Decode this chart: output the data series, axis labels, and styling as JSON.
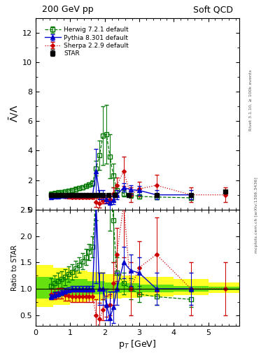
{
  "title_left": "200 GeV pp",
  "title_right": "Soft QCD",
  "ylabel_main": "$\\bar{\\Lambda}/\\Lambda$",
  "ylabel_ratio": "Ratio to STAR",
  "xlabel": "p$_{T}$ [GeV]",
  "right_label1": "Rivet 3.1.10, ≥ 100k events",
  "right_label2": "mcplots.cern.ch [arXiv:1306.3436]",
  "star_x": [
    0.45,
    0.55,
    0.65,
    0.75,
    0.85,
    0.95,
    1.05,
    1.15,
    1.25,
    1.35,
    1.45,
    1.55,
    1.65,
    1.75,
    1.85,
    1.95,
    2.1,
    2.3,
    2.7,
    3.5,
    4.5,
    5.5
  ],
  "star_y": [
    1.0,
    1.0,
    1.0,
    1.0,
    1.0,
    1.0,
    1.0,
    1.0,
    1.0,
    1.0,
    1.0,
    1.0,
    1.0,
    1.0,
    1.0,
    1.0,
    1.0,
    1.0,
    1.0,
    1.0,
    1.0,
    1.2
  ],
  "star_yerr": [
    0.05,
    0.05,
    0.05,
    0.05,
    0.05,
    0.05,
    0.05,
    0.05,
    0.05,
    0.05,
    0.05,
    0.05,
    0.05,
    0.05,
    0.05,
    0.05,
    0.05,
    0.05,
    0.05,
    0.05,
    0.05,
    0.07
  ],
  "herwig_x": [
    0.45,
    0.55,
    0.65,
    0.75,
    0.85,
    0.95,
    1.05,
    1.15,
    1.25,
    1.35,
    1.45,
    1.55,
    1.65,
    1.75,
    1.85,
    1.95,
    2.05,
    2.15,
    2.25,
    2.35,
    2.55,
    2.75,
    3.0,
    3.5,
    4.5
  ],
  "herwig_y": [
    1.05,
    1.1,
    1.15,
    1.18,
    1.22,
    1.28,
    1.32,
    1.38,
    1.45,
    1.52,
    1.6,
    1.7,
    1.8,
    2.8,
    3.7,
    5.0,
    5.1,
    3.6,
    2.3,
    1.3,
    1.1,
    1.0,
    0.9,
    0.85,
    0.8
  ],
  "herwig_yerr": [
    0.15,
    0.15,
    0.15,
    0.15,
    0.15,
    0.15,
    0.15,
    0.15,
    0.15,
    0.15,
    0.15,
    0.15,
    0.2,
    0.5,
    1.0,
    2.0,
    2.0,
    1.5,
    0.8,
    0.3,
    0.2,
    0.2,
    0.15,
    0.15,
    0.15
  ],
  "pythia_x": [
    0.45,
    0.55,
    0.65,
    0.75,
    0.85,
    0.95,
    1.05,
    1.15,
    1.25,
    1.35,
    1.45,
    1.55,
    1.65,
    1.75,
    1.85,
    1.95,
    2.05,
    2.15,
    2.25,
    2.35,
    2.55,
    2.75,
    3.0,
    3.5,
    4.5
  ],
  "pythia_y": [
    0.85,
    0.88,
    0.9,
    0.93,
    0.96,
    0.98,
    1.0,
    1.0,
    1.0,
    1.0,
    1.0,
    1.0,
    1.0,
    2.6,
    1.0,
    1.0,
    0.7,
    0.45,
    0.65,
    1.0,
    1.5,
    1.35,
    1.3,
    1.0,
    1.0
  ],
  "pythia_yerr": [
    0.05,
    0.05,
    0.05,
    0.05,
    0.05,
    0.05,
    0.05,
    0.05,
    0.05,
    0.05,
    0.05,
    0.05,
    0.05,
    1.5,
    0.3,
    0.3,
    0.3,
    0.5,
    0.3,
    0.3,
    0.3,
    0.3,
    0.3,
    0.3,
    0.3
  ],
  "sherpa_x": [
    0.45,
    0.55,
    0.65,
    0.75,
    0.85,
    0.95,
    1.05,
    1.15,
    1.25,
    1.35,
    1.45,
    1.55,
    1.65,
    1.75,
    1.85,
    1.95,
    2.05,
    2.15,
    2.25,
    2.35,
    2.55,
    2.75,
    3.0,
    3.5,
    4.5,
    5.5
  ],
  "sherpa_y": [
    0.9,
    0.9,
    0.92,
    0.92,
    0.88,
    0.87,
    0.85,
    0.85,
    0.85,
    0.85,
    0.85,
    0.85,
    0.85,
    0.5,
    0.43,
    0.6,
    0.67,
    0.7,
    1.1,
    1.65,
    2.6,
    1.0,
    1.4,
    1.65,
    1.0,
    1.0
  ],
  "sherpa_yerr": [
    0.1,
    0.1,
    0.1,
    0.1,
    0.1,
    0.1,
    0.1,
    0.1,
    0.1,
    0.1,
    0.1,
    0.1,
    0.1,
    0.3,
    0.3,
    0.2,
    0.2,
    0.2,
    0.4,
    0.5,
    1.0,
    0.5,
    0.5,
    0.7,
    0.5,
    0.5
  ],
  "herwig_color": "#007700",
  "pythia_color": "#0000cc",
  "sherpa_color": "#cc0000",
  "star_color": "#000000",
  "ylim_main": [
    0,
    13
  ],
  "yticks_main": [
    0,
    2,
    4,
    6,
    8,
    10,
    12
  ],
  "ylim_ratio": [
    0.3,
    2.5
  ],
  "yticks_ratio": [
    0.5,
    1.0,
    1.5,
    2.0,
    2.5
  ],
  "xlim": [
    0.0,
    5.9
  ],
  "xticks": [
    0,
    1,
    2,
    3,
    4,
    5
  ],
  "band_yellow_x": [
    0.0,
    0.5,
    1.0,
    1.5,
    2.0,
    2.5,
    3.0,
    4.0,
    5.0,
    5.9
  ],
  "band_yellow_lo": [
    0.65,
    0.7,
    0.75,
    0.78,
    0.82,
    0.83,
    0.85,
    0.88,
    0.92,
    0.92
  ],
  "band_yellow_hi": [
    1.45,
    1.4,
    1.35,
    1.32,
    1.28,
    1.25,
    1.22,
    1.18,
    1.12,
    1.12
  ],
  "band_green_x": [
    0.0,
    0.5,
    1.0,
    1.5,
    2.0,
    2.5,
    3.0,
    4.0,
    5.0,
    5.9
  ],
  "band_green_lo": [
    0.82,
    0.85,
    0.88,
    0.9,
    0.92,
    0.93,
    0.94,
    0.95,
    0.97,
    0.97
  ],
  "band_green_hi": [
    1.22,
    1.2,
    1.18,
    1.15,
    1.12,
    1.1,
    1.08,
    1.06,
    1.04,
    1.04
  ]
}
